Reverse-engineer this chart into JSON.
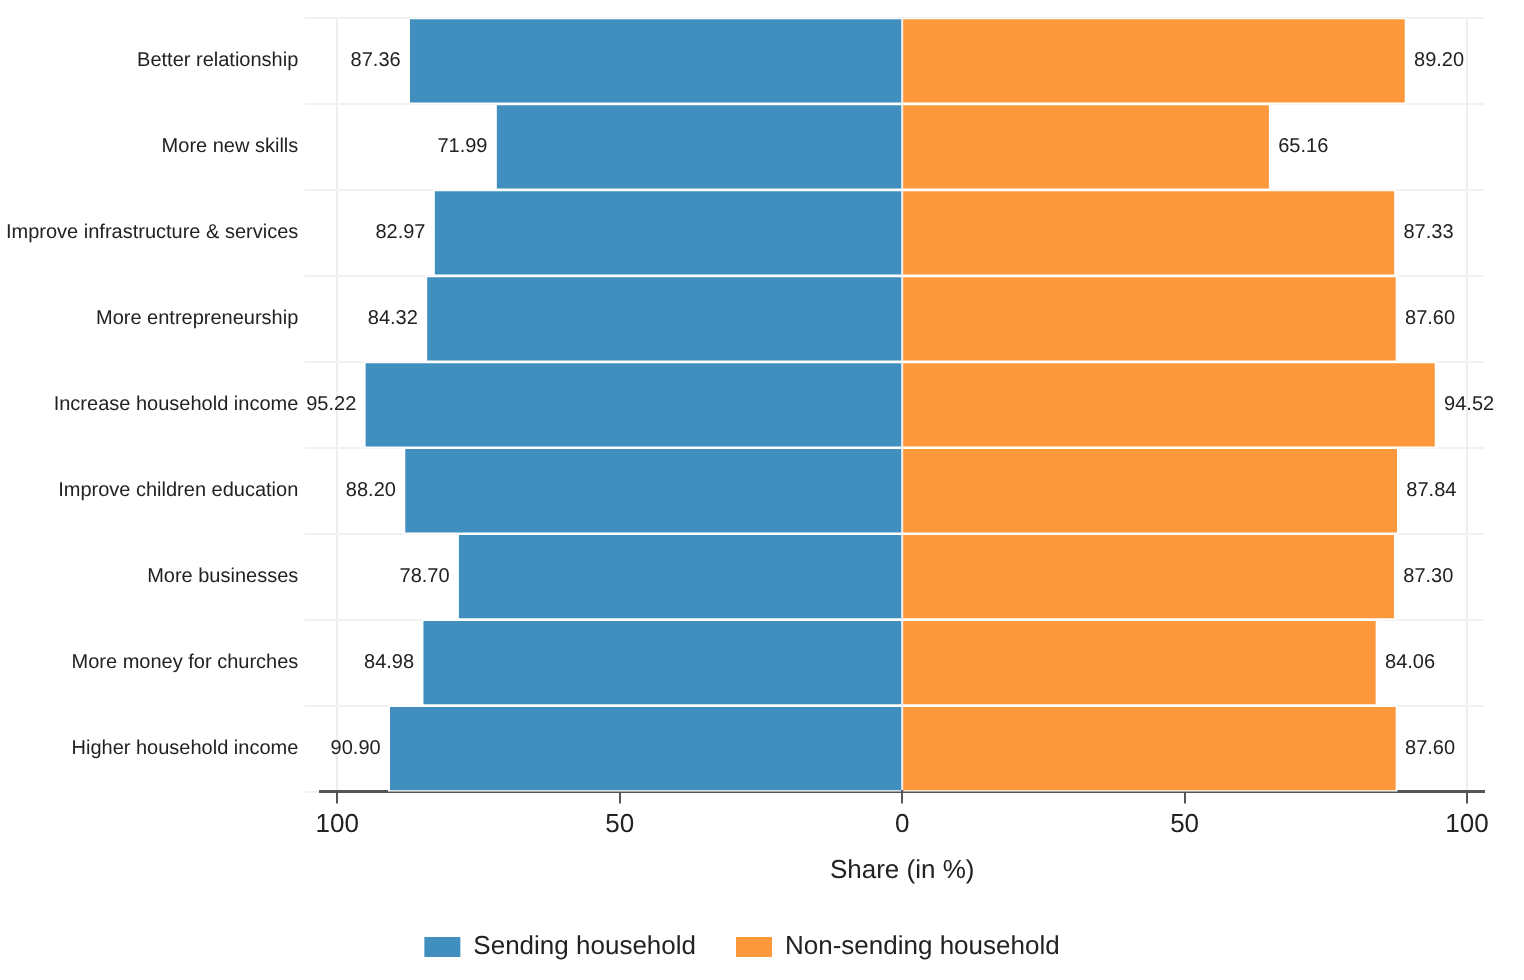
{
  "chart_data": {
    "type": "bar",
    "orientation": "horizontal",
    "xlabel": "Share (in %)",
    "categories": [
      "Better relationship",
      "More new skills",
      "Improve infrastructure & services",
      "More entrepreneurship",
      "Increase household income",
      "Improve children education",
      "More businesses",
      "More money for churches",
      "Higher household income"
    ],
    "series": [
      {
        "name": "Sending household",
        "color": "#418fbf",
        "values": [
          87.36,
          71.99,
          82.97,
          84.32,
          95.22,
          88.2,
          78.7,
          84.98,
          90.9
        ],
        "base": [
          -87.36,
          -71.99,
          -82.97,
          -84.32,
          -95.22,
          -88.2,
          -78.7,
          -84.98,
          -90.9
        ],
        "value_labels": [
          "87.36",
          "71.99",
          "82.97",
          "84.32",
          "95.22",
          "88.20",
          "78.70",
          "84.98",
          "90.90"
        ]
      },
      {
        "name": "Non-sending household",
        "color": "#fd983c",
        "values": [
          89.2,
          65.16,
          87.33,
          87.6,
          94.52,
          87.84,
          87.3,
          84.06,
          87.6
        ],
        "value_labels": [
          "89.20",
          "65.16",
          "87.33",
          "87.60",
          "94.52",
          "87.84",
          "87.30",
          "84.06",
          "87.60"
        ]
      }
    ],
    "xlim": [
      -103,
      103
    ],
    "xticks": [
      {
        "value": -100,
        "label": "100"
      },
      {
        "value": -50,
        "label": "50"
      },
      0,
      50,
      100
    ],
    "grid": true,
    "legend": "bottom"
  }
}
